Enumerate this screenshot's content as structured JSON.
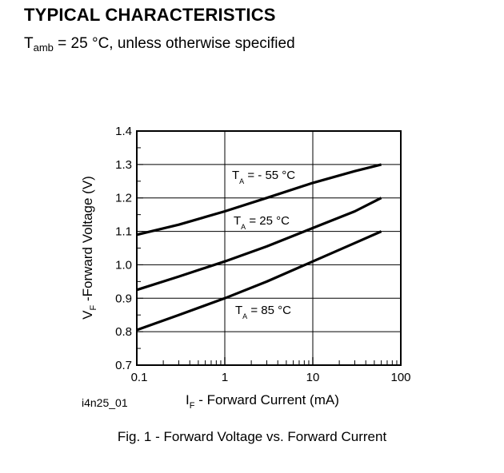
{
  "header": {
    "title": "TYPICAL CHARACTERISTICS",
    "condition_symbol": "T",
    "condition_subscript": "amb",
    "condition_text": " = 25 °C, unless otherwise specified"
  },
  "figure": {
    "id": "i4n25_01",
    "caption": "Fig. 1 - Forward Voltage vs. Forward Current"
  },
  "chart_data": {
    "type": "line",
    "x_scale": "log",
    "xlim": [
      0.1,
      100
    ],
    "ylim": [
      0.7,
      1.4
    ],
    "grid": true,
    "xlabel": {
      "symbol": "I",
      "subscript": "F",
      "text": " - Forward Current (mA)"
    },
    "ylabel": {
      "symbol": "V",
      "subscript": "F",
      "text": " -Forward Voltage (V)"
    },
    "x_ticks": [
      "0.1",
      "1",
      "10",
      "100"
    ],
    "y_ticks": [
      "0.7",
      "0.8",
      "0.9",
      "1.0",
      "1.1",
      "1.2",
      "1.3",
      "1.4"
    ],
    "series": [
      {
        "label_symbol": "T",
        "label_subscript": "A",
        "label_text": " = - 55 °C",
        "x": [
          0.1,
          0.3,
          1,
          3,
          10,
          30,
          60
        ],
        "y": [
          1.09,
          1.12,
          1.16,
          1.2,
          1.245,
          1.28,
          1.3
        ]
      },
      {
        "label_symbol": "T",
        "label_subscript": "A",
        "label_text": " = 25 °C",
        "x": [
          0.1,
          0.3,
          1,
          3,
          10,
          30,
          60
        ],
        "y": [
          0.925,
          0.965,
          1.01,
          1.055,
          1.11,
          1.16,
          1.2
        ]
      },
      {
        "label_symbol": "T",
        "label_subscript": "A",
        "label_text": " = 85 °C",
        "x": [
          0.1,
          0.3,
          1,
          3,
          10,
          30,
          60
        ],
        "y": [
          0.805,
          0.85,
          0.9,
          0.95,
          1.01,
          1.065,
          1.1
        ]
      }
    ]
  }
}
